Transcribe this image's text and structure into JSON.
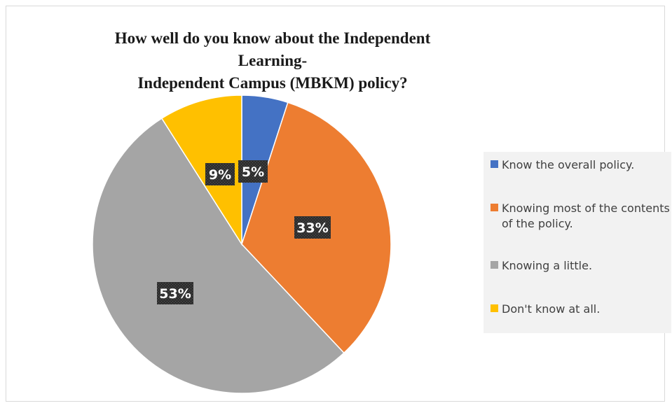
{
  "chart_data": {
    "type": "pie",
    "title": "How well do you know about the Independent Learning-Independent Campus (MBKM) policy?",
    "categories": [
      "Know the overall policy.",
      "Knowing most of the contents of the policy.",
      "Knowing a little.",
      "Don't know at all."
    ],
    "values": [
      5,
      33,
      53,
      9
    ],
    "labels": [
      "5%",
      "33%",
      "53%",
      "9%"
    ],
    "colors": [
      "#4472c4",
      "#ed7d31",
      "#a5a5a5",
      "#ffc000"
    ],
    "legend": "right"
  },
  "title_line1": "How well do you know about the Independent Learning-",
  "title_line2": "Independent Campus (MBKM) policy?"
}
